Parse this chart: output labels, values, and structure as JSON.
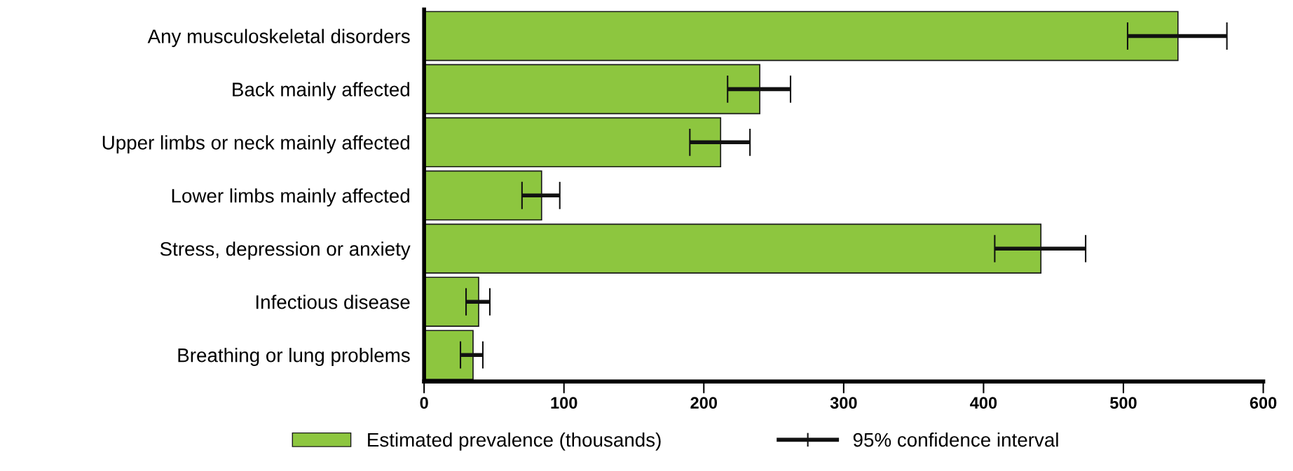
{
  "chart_data": {
    "type": "bar",
    "orientation": "horizontal",
    "categories": [
      "Any musculoskeletal disorders",
      "Back mainly affected",
      "Upper limbs or neck mainly affected",
      "Lower limbs mainly affected",
      "Stress, depression or anxiety",
      "Infectious disease",
      "Breathing or lung problems"
    ],
    "series": [
      {
        "name": "Estimated prevalence (thousands)",
        "color": "#8dc63f",
        "values": [
          539,
          240,
          212,
          84,
          441,
          39,
          35
        ],
        "errors": [
          [
            503,
            574
          ],
          [
            217,
            262
          ],
          [
            190,
            233
          ],
          [
            70,
            97
          ],
          [
            408,
            473
          ],
          [
            30,
            47
          ],
          [
            26,
            42
          ]
        ]
      }
    ],
    "xlim": [
      0,
      600
    ],
    "xticks": [
      0,
      100,
      200,
      300,
      400,
      500,
      600
    ],
    "grid": false,
    "legend": "bottom",
    "annotations": [
      "95% confidence interval"
    ]
  }
}
